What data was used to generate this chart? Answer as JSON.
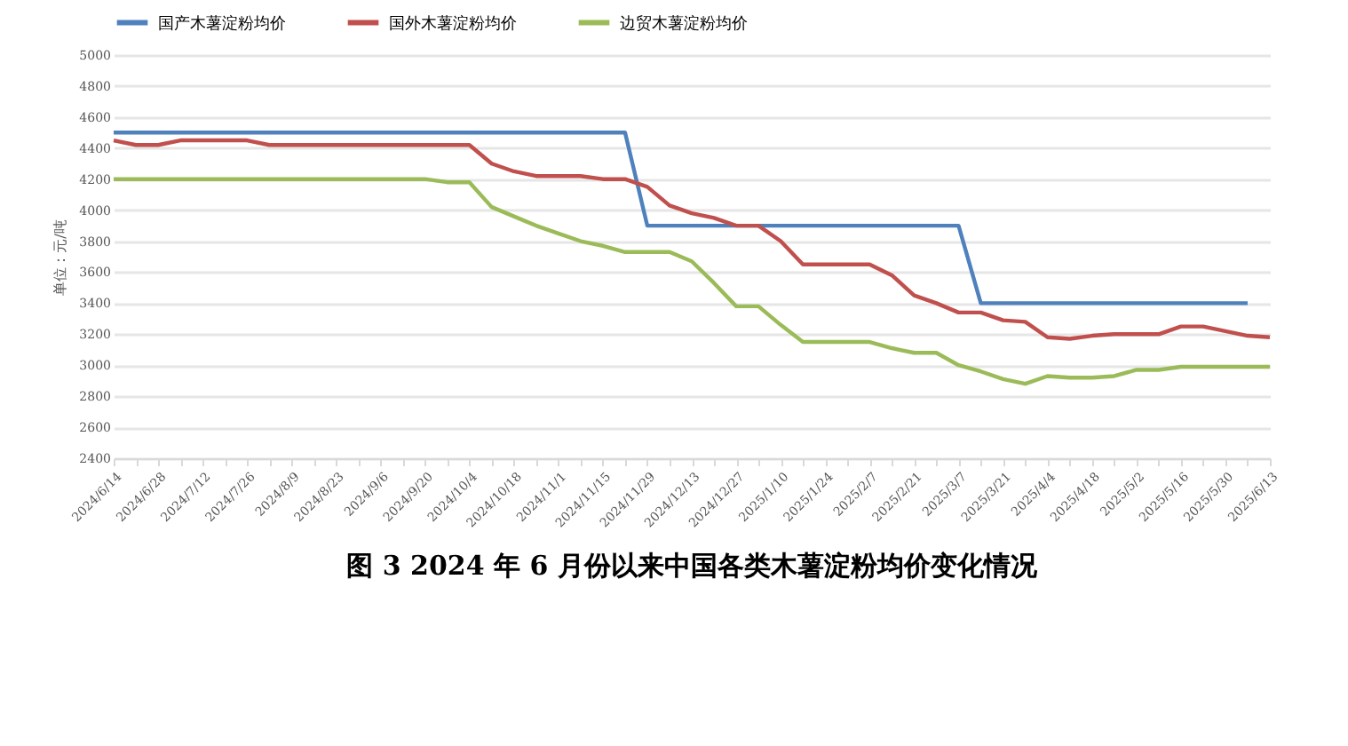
{
  "chart_data": {
    "type": "line",
    "title": "图 3   2024 年 6 月份以来中国各类木薯淀粉均价变化情况",
    "ylabel": "单位：元/吨",
    "categories": [
      "2024/6/14",
      null,
      "2024/6/28",
      null,
      "2024/7/12",
      null,
      "2024/7/26",
      null,
      "2024/8/9",
      null,
      "2024/8/23",
      null,
      "2024/9/6",
      null,
      "2024/9/20",
      null,
      "2024/10/4",
      null,
      "2024/10/18",
      null,
      "2024/11/1",
      null,
      "2024/11/15",
      null,
      "2024/11/29",
      null,
      "2024/12/13",
      null,
      "2024/12/27",
      null,
      "2025/1/10",
      null,
      "2025/1/24",
      null,
      "2025/2/7",
      null,
      "2025/2/21",
      null,
      "2025/3/7",
      null,
      "2025/3/21",
      null,
      "2025/4/4",
      null,
      "2025/4/18",
      null,
      "2025/5/2",
      null,
      "2025/5/16",
      null,
      "2025/5/30",
      null,
      "2025/6/13"
    ],
    "series": [
      {
        "name": "国产木薯淀粉均价",
        "color": "#4f81bd",
        "values": [
          4500,
          4500,
          4500,
          4500,
          4500,
          4500,
          4500,
          4500,
          4500,
          4500,
          4500,
          4500,
          4500,
          4500,
          4500,
          4500,
          4500,
          4500,
          4500,
          4500,
          4500,
          4500,
          4500,
          4500,
          3900,
          3900,
          3900,
          3900,
          3900,
          3900,
          3900,
          3900,
          3900,
          3900,
          3900,
          3900,
          3900,
          3900,
          3900,
          3400,
          3400,
          3400,
          3400,
          3400,
          3400,
          3400,
          3400,
          3400,
          3400,
          3400,
          3400,
          3400,
          null
        ]
      },
      {
        "name": "国外木薯淀粉均价",
        "color": "#c0504d",
        "values": [
          4450,
          4420,
          4420,
          4450,
          4450,
          4450,
          4450,
          4420,
          4420,
          4420,
          4420,
          4420,
          4420,
          4420,
          4420,
          4420,
          4420,
          4300,
          4250,
          4220,
          4220,
          4220,
          4200,
          4200,
          4150,
          4030,
          3980,
          3950,
          3900,
          3900,
          3800,
          3650,
          3650,
          3650,
          3650,
          3580,
          3450,
          3400,
          3340,
          3340,
          3290,
          3280,
          3180,
          3170,
          3190,
          3200,
          3200,
          3200,
          3250,
          3250,
          3220,
          3190,
          3180
        ]
      },
      {
        "name": "边贸木薯淀粉均价",
        "color": "#9bbb59",
        "values": [
          4200,
          4200,
          4200,
          4200,
          4200,
          4200,
          4200,
          4200,
          4200,
          4200,
          4200,
          4200,
          4200,
          4200,
          4200,
          4180,
          4180,
          4020,
          3960,
          3900,
          3850,
          3800,
          3770,
          3730,
          3730,
          3730,
          3670,
          3530,
          3380,
          3380,
          3260,
          3150,
          3150,
          3150,
          3150,
          3110,
          3080,
          3080,
          3000,
          2960,
          2910,
          2880,
          2930,
          2920,
          2920,
          2930,
          2970,
          2970,
          2990,
          2990,
          2990,
          2990,
          2990
        ]
      }
    ],
    "ylim": [
      2400,
      5000
    ],
    "yticks": [
      2400,
      2600,
      2800,
      3000,
      3200,
      3400,
      3600,
      3800,
      4000,
      4200,
      4400,
      4600,
      4800,
      5000
    ],
    "grid": "y",
    "legend": "top",
    "marker": "none",
    "line_style": "solid"
  }
}
